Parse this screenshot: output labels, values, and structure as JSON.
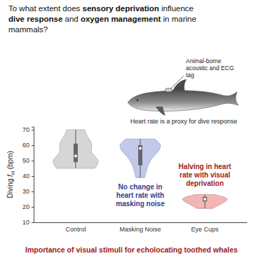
{
  "chart_data": {
    "type": "violin",
    "title": [
      "To what extent does sensory deprivation influence",
      "dive response and oxygen management in marine",
      "mammals?"
    ],
    "title_emphasis": [
      "sensory deprivation",
      "dive response",
      "oxygen management"
    ],
    "tag_label": [
      "Animal-borne",
      "acoustic and ECG",
      "tag"
    ],
    "caption": "Heart rate is a proxy for dive response",
    "ylabel": [
      "Diving ",
      "f",
      "H",
      " (bpm)"
    ],
    "categories": [
      "Control",
      "Masking Noise",
      "Eye Cups"
    ],
    "colors": [
      "#d6d6d6",
      "#c3c9ea",
      "#f3b5b5"
    ],
    "violins": [
      {
        "min": 45,
        "q1": 49,
        "median": 53,
        "q3": 61,
        "max": 70,
        "density_y": [
          45,
          47,
          50,
          53,
          56,
          59,
          62,
          65,
          68,
          70
        ],
        "density_width": [
          0.85,
          0.95,
          1.0,
          0.85,
          0.7,
          0.72,
          0.68,
          0.55,
          0.45,
          0.4
        ]
      },
      {
        "min": 39,
        "q1": 47,
        "median": 58,
        "q3": 60,
        "max": 64,
        "density_y": [
          39,
          42,
          45,
          48,
          51,
          54,
          57,
          60,
          62,
          64
        ],
        "density_width": [
          0.2,
          0.25,
          0.3,
          0.38,
          0.5,
          0.68,
          0.85,
          0.9,
          0.8,
          0.65
        ]
      },
      {
        "min": 19,
        "q1": 23.5,
        "median": 25,
        "q3": 26.5,
        "max": 28,
        "density_y": [
          19,
          21,
          23,
          24,
          25,
          26,
          27,
          28
        ],
        "density_width": [
          0.35,
          0.6,
          0.85,
          0.95,
          1.0,
          0.9,
          0.7,
          0.4
        ]
      }
    ],
    "ylim": [
      10,
      72
    ],
    "yticks": [
      10,
      20,
      30,
      40,
      50,
      60,
      70
    ],
    "annotations": [
      {
        "text": [
          "No change in",
          "heart rate with",
          "masking noise"
        ],
        "color": "#2f3f8f"
      },
      {
        "text": [
          "Halving in heart",
          "rate with visual",
          "deprivation"
        ],
        "color": "#9e1b1b"
      }
    ],
    "conclusion": {
      "text": "Importance of visual stimuli for echolocating toothed whales",
      "color": "#9e1b1b"
    }
  }
}
